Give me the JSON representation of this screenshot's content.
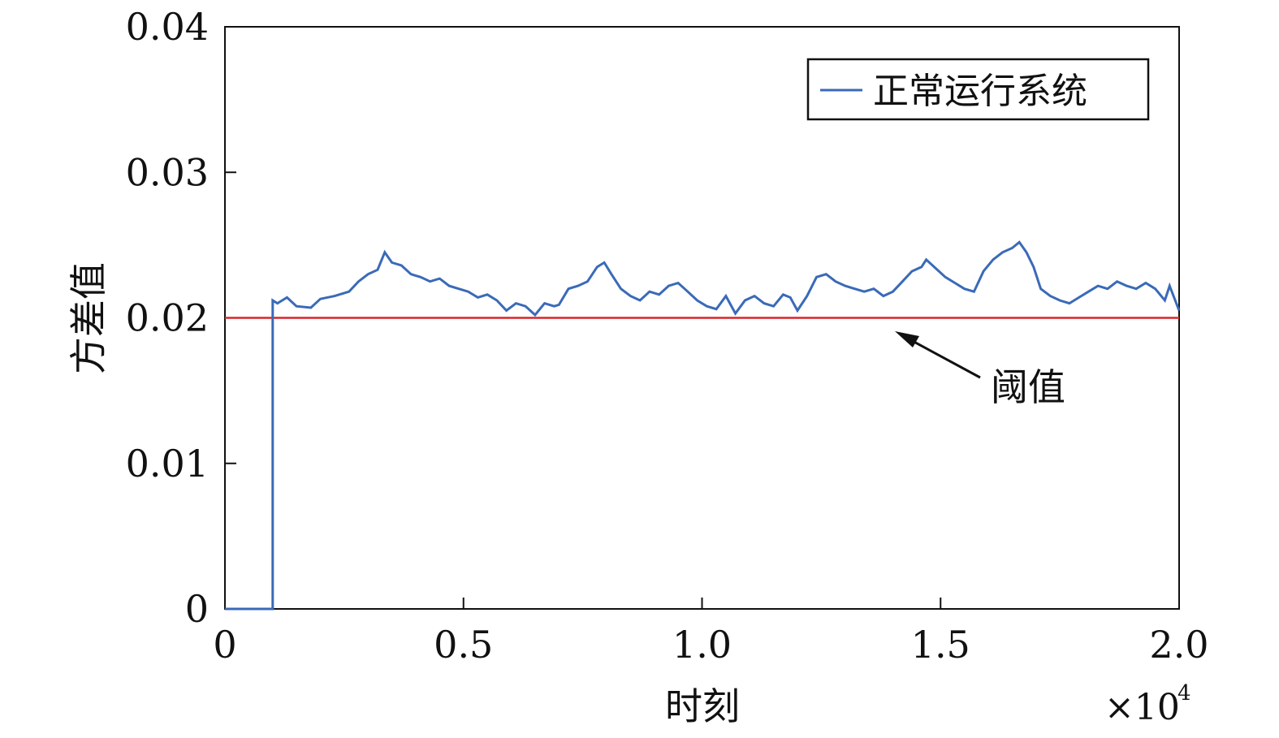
{
  "chart_data": {
    "type": "line",
    "title": "",
    "xlabel": "时刻",
    "ylabel": "方差值",
    "x_multiplier_label": "×10",
    "x_multiplier_exponent": "4",
    "xlim": [
      0,
      20000
    ],
    "ylim": [
      0,
      0.04
    ],
    "x_ticks": [
      0,
      5000,
      10000,
      15000,
      20000
    ],
    "x_tick_labels": [
      "0",
      "0.5",
      "1.0",
      "1.5",
      "2.0"
    ],
    "y_ticks": [
      0,
      0.01,
      0.02,
      0.03,
      0.04
    ],
    "y_tick_labels": [
      "0",
      "0.01",
      "0.02",
      "0.03",
      "0.04"
    ],
    "grid": false,
    "legend_position": "top-right",
    "series": [
      {
        "name": "正常运行系统",
        "color": "#3a6ab8",
        "x": [
          0,
          1000,
          1000,
          1100,
          1300,
          1500,
          1800,
          2000,
          2300,
          2600,
          2800,
          3000,
          3200,
          3350,
          3500,
          3700,
          3900,
          4100,
          4300,
          4500,
          4700,
          4900,
          5100,
          5300,
          5500,
          5700,
          5900,
          6100,
          6300,
          6500,
          6700,
          6900,
          7000,
          7200,
          7400,
          7600,
          7800,
          7950,
          8100,
          8300,
          8500,
          8700,
          8900,
          9100,
          9300,
          9500,
          9700,
          9900,
          10100,
          10300,
          10500,
          10700,
          10900,
          11100,
          11300,
          11500,
          11700,
          11850,
          12000,
          12200,
          12400,
          12600,
          12800,
          13000,
          13200,
          13400,
          13600,
          13800,
          14000,
          14200,
          14400,
          14600,
          14700,
          14900,
          15100,
          15300,
          15500,
          15700,
          15900,
          16100,
          16300,
          16500,
          16650,
          16800,
          16950,
          17100,
          17300,
          17500,
          17700,
          17900,
          18100,
          18300,
          18500,
          18700,
          18900,
          19100,
          19300,
          19500,
          19700,
          19800,
          20000
        ],
        "y": [
          0,
          0,
          0.0212,
          0.021,
          0.0214,
          0.0208,
          0.0207,
          0.0213,
          0.0215,
          0.0218,
          0.0225,
          0.023,
          0.0233,
          0.0245,
          0.0238,
          0.0236,
          0.023,
          0.0228,
          0.0225,
          0.0227,
          0.0222,
          0.022,
          0.0218,
          0.0214,
          0.0216,
          0.0212,
          0.0205,
          0.021,
          0.0208,
          0.0202,
          0.021,
          0.0208,
          0.0209,
          0.022,
          0.0222,
          0.0225,
          0.0235,
          0.0238,
          0.023,
          0.022,
          0.0215,
          0.0212,
          0.0218,
          0.0216,
          0.0222,
          0.0224,
          0.0218,
          0.0212,
          0.0208,
          0.0206,
          0.0215,
          0.0203,
          0.0212,
          0.0215,
          0.021,
          0.0208,
          0.0216,
          0.0214,
          0.0205,
          0.0215,
          0.0228,
          0.023,
          0.0225,
          0.0222,
          0.022,
          0.0218,
          0.022,
          0.0215,
          0.0218,
          0.0225,
          0.0232,
          0.0235,
          0.024,
          0.0234,
          0.0228,
          0.0224,
          0.022,
          0.0218,
          0.0232,
          0.024,
          0.0245,
          0.0248,
          0.0252,
          0.0245,
          0.0235,
          0.022,
          0.0215,
          0.0212,
          0.021,
          0.0214,
          0.0218,
          0.0222,
          0.022,
          0.0225,
          0.0222,
          0.022,
          0.0224,
          0.022,
          0.0212,
          0.0222,
          0.0205
        ]
      }
    ],
    "reference_line": {
      "y": 0.02,
      "color": "#d9252a"
    },
    "annotation": {
      "text": "阈值",
      "points_to": {
        "x": 14000,
        "y": 0.02
      }
    }
  }
}
